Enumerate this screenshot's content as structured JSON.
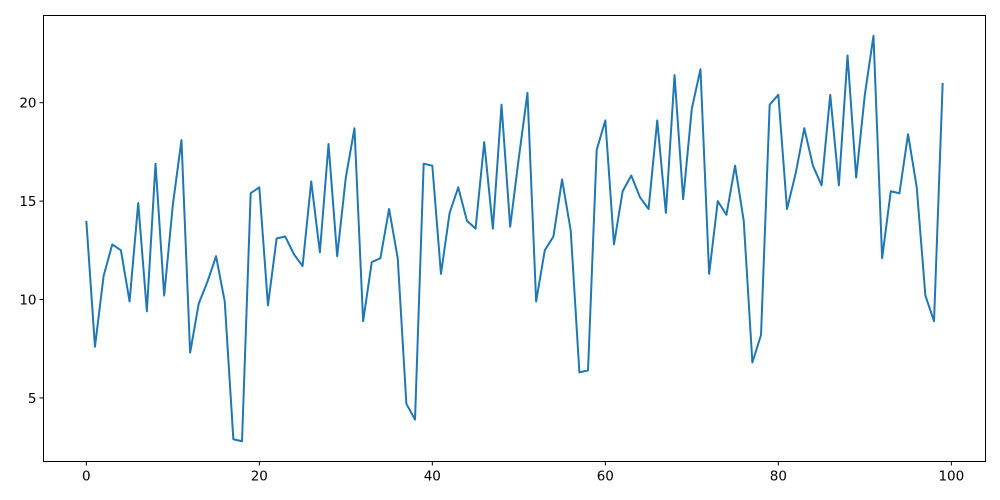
{
  "chart_data": {
    "type": "line",
    "title": "",
    "xlabel": "",
    "ylabel": "",
    "xlim": [
      -4.95,
      103.95
    ],
    "ylim": [
      1.77,
      24.43
    ],
    "xticks": [
      0,
      20,
      40,
      60,
      80,
      100
    ],
    "yticks": [
      5,
      10,
      15,
      20
    ],
    "xtick_labels": [
      "0",
      "20",
      "40",
      "60",
      "80",
      "100"
    ],
    "ytick_labels": [
      "5",
      "10",
      "15",
      "20"
    ],
    "grid": false,
    "color": "#1f77b4",
    "series": [
      {
        "x_start": 0,
        "values": [
          14.0,
          7.6,
          11.2,
          12.8,
          12.5,
          9.9,
          14.9,
          9.4,
          16.9,
          10.2,
          14.8,
          18.1,
          7.3,
          9.8,
          10.9,
          12.2,
          9.9,
          2.9,
          2.8,
          15.4,
          15.7,
          9.7,
          13.1,
          13.2,
          12.3,
          11.7,
          16.0,
          12.4,
          17.9,
          12.2,
          16.2,
          18.7,
          8.9,
          11.9,
          12.1,
          14.6,
          12.1,
          4.7,
          3.9,
          16.9,
          16.8,
          11.3,
          14.4,
          15.7,
          14.0,
          13.6,
          18.0,
          13.6,
          19.9,
          13.7,
          17.2,
          20.5,
          9.9,
          12.5,
          13.2,
          16.1,
          13.5,
          6.3,
          6.4,
          17.6,
          19.1,
          12.8,
          15.5,
          16.3,
          15.2,
          14.6,
          19.1,
          14.4,
          21.4,
          15.1,
          19.7,
          21.7,
          11.3,
          15.0,
          14.3,
          16.8,
          14.0,
          6.8,
          8.2,
          19.9,
          20.4,
          14.6,
          16.4,
          18.7,
          16.8,
          15.8,
          20.4,
          15.8,
          22.4,
          16.2,
          20.4,
          23.4,
          12.1,
          15.5,
          15.4,
          18.4,
          15.7,
          10.2,
          8.9,
          21.0
        ]
      }
    ]
  }
}
